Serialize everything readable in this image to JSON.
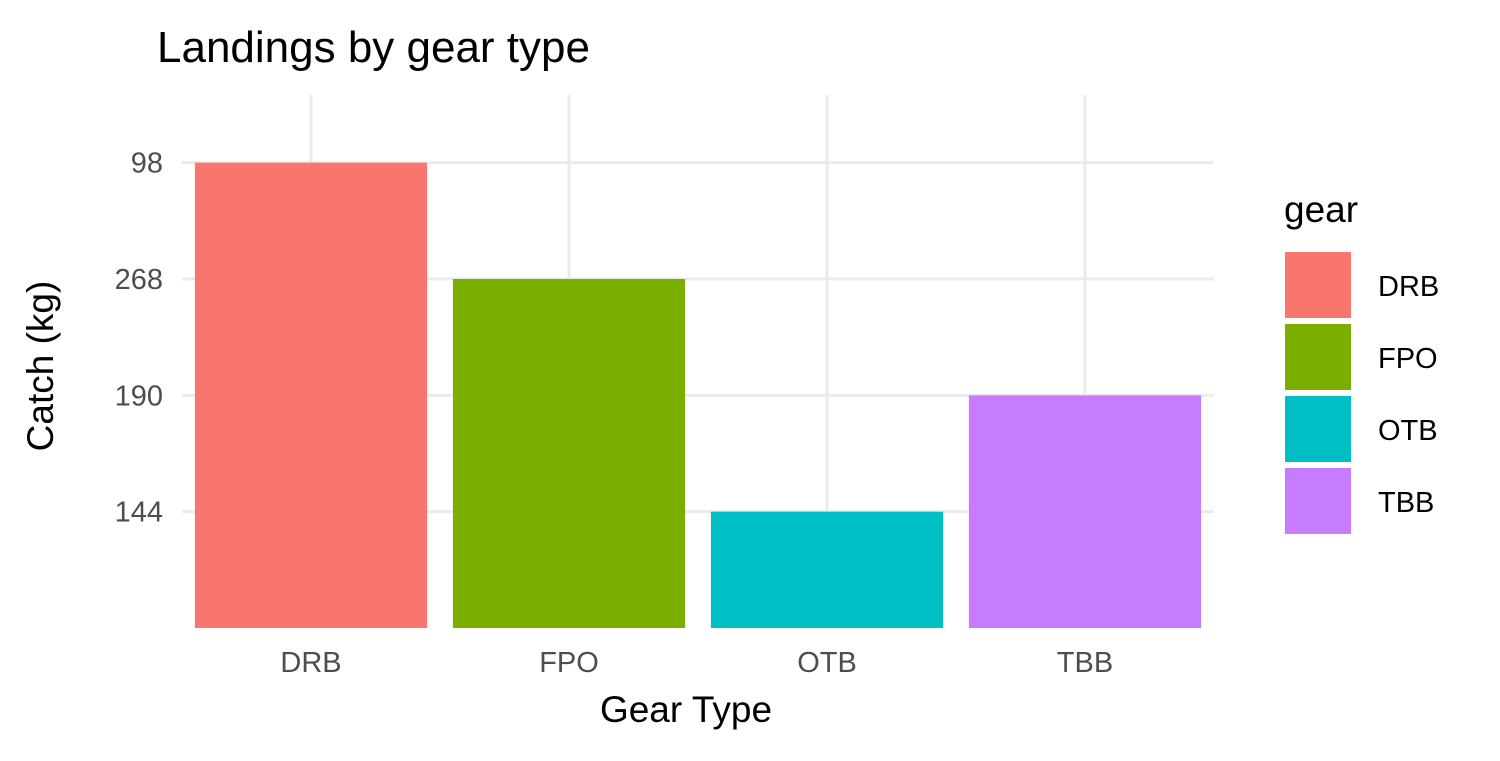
{
  "chart_data": {
    "type": "bar",
    "title": "Landings by gear type",
    "xlabel": "Gear Type",
    "ylabel": "Catch (kg)",
    "categories": [
      "DRB",
      "FPO",
      "OTB",
      "TBB"
    ],
    "values": [
      98,
      268,
      144,
      190
    ],
    "bar_levels": [
      4,
      3,
      1,
      2
    ],
    "colors": [
      "#F8766D",
      "#7CAE00",
      "#00BFC4",
      "#C77CFF"
    ],
    "y_axis": {
      "scale": "discrete",
      "ticks_bottom_to_top": [
        "144",
        "190",
        "268",
        "98"
      ]
    },
    "grid": true,
    "legend": {
      "title": "gear",
      "position": "right",
      "entries": [
        "DRB",
        "FPO",
        "OTB",
        "TBB"
      ]
    }
  }
}
